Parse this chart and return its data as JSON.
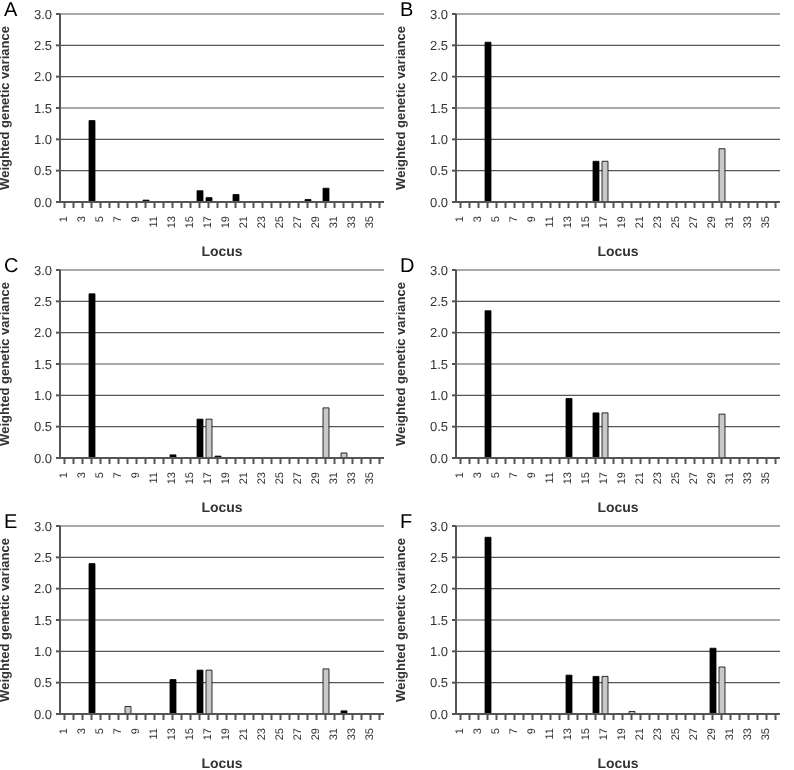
{
  "chart_data": [
    {
      "type": "bar",
      "title": "A",
      "xlabel": "Locus",
      "ylabel": "Weighted genetic variance",
      "ylim": [
        0,
        3
      ],
      "yticks": [
        {
          "value": 0,
          "label": "0.0"
        },
        0.5,
        {
          "value": 1,
          "label": "1.0"
        },
        1.5,
        {
          "value": 2,
          "label": "2.0"
        },
        2.5,
        {
          "value": 3,
          "label": "3.0"
        }
      ],
      "grid": "y",
      "categories": [
        "1",
        null,
        "3",
        null,
        "5",
        null,
        "7",
        null,
        "9",
        null,
        "11",
        null,
        "13",
        null,
        "15",
        null,
        "17",
        null,
        "19",
        null,
        "21",
        null,
        "23",
        null,
        "25",
        null,
        "27",
        null,
        "29",
        null,
        "31",
        null,
        "33",
        null,
        "35",
        null
      ],
      "values": [
        0,
        0,
        0,
        1.3,
        0,
        0,
        0,
        0,
        0,
        0.03,
        0,
        0,
        0,
        0,
        0,
        0.18,
        0.07,
        0,
        0,
        0.12,
        0,
        0,
        0,
        0,
        0,
        0,
        0,
        0.04,
        0,
        0.22,
        0,
        0,
        0,
        0,
        0,
        0
      ],
      "colors": [
        "#000000",
        "#000000",
        "#000000",
        "#000000",
        "#000000",
        "#000000",
        "#000000",
        "#000000",
        "#000000",
        "#000000",
        "#000000",
        "#000000",
        "#000000",
        "#000000",
        "#000000",
        "#000000",
        "#000000",
        "#000000",
        "#000000",
        "#000000",
        "#000000",
        "#000000",
        "#000000",
        "#000000",
        "#000000",
        "#000000",
        "#000000",
        "#000000",
        "#000000",
        "#000000",
        "#000000",
        "#000000",
        "#000000",
        "#000000",
        "#000000",
        "#000000"
      ]
    },
    {
      "type": "bar",
      "title": "B",
      "xlabel": "Locus",
      "ylabel": "Weighted genetic variance",
      "ylim": [
        0,
        3
      ],
      "yticks": [
        {
          "value": 0,
          "label": "0.0"
        },
        0.5,
        {
          "value": 1,
          "label": "1.0"
        },
        1.5,
        {
          "value": 2,
          "label": "2.0"
        },
        2.5,
        {
          "value": 3,
          "label": "3.0"
        }
      ],
      "grid": "y",
      "categories": [
        "1",
        null,
        "3",
        null,
        "5",
        null,
        "7",
        null,
        "9",
        null,
        "11",
        null,
        "13",
        null,
        "15",
        null,
        "17",
        null,
        "19",
        null,
        "21",
        null,
        "23",
        null,
        "25",
        null,
        "27",
        null,
        "29",
        null,
        "31",
        null,
        "33",
        null,
        "35",
        null
      ],
      "values": [
        0,
        0,
        0,
        2.55,
        0,
        0,
        0,
        0,
        0,
        0,
        0,
        0,
        0,
        0,
        0,
        0.65,
        0.65,
        0,
        0,
        0,
        0,
        0,
        0,
        0,
        0,
        0,
        0,
        0,
        0,
        0.85,
        0,
        0,
        0,
        0,
        0,
        0
      ],
      "colors": [
        "#000000",
        "#000000",
        "#000000",
        "#000000",
        "#000000",
        "#000000",
        "#000000",
        "#000000",
        "#000000",
        "#000000",
        "#000000",
        "#000000",
        "#000000",
        "#000000",
        "#000000",
        "#000000",
        "#c8c8c8",
        "#000000",
        "#000000",
        "#000000",
        "#000000",
        "#000000",
        "#000000",
        "#000000",
        "#000000",
        "#000000",
        "#000000",
        "#000000",
        "#000000",
        "#c8c8c8",
        "#000000",
        "#000000",
        "#000000",
        "#000000",
        "#000000",
        "#000000"
      ]
    },
    {
      "type": "bar",
      "title": "C",
      "xlabel": "Locus",
      "ylabel": "Weighted genetic variance",
      "ylim": [
        0,
        3
      ],
      "yticks": [
        {
          "value": 0,
          "label": "0.0"
        },
        0.5,
        {
          "value": 1,
          "label": "1.0"
        },
        1.5,
        {
          "value": 2,
          "label": "2.0"
        },
        2.5,
        {
          "value": 3,
          "label": "3.0"
        }
      ],
      "grid": "y",
      "categories": [
        "1",
        null,
        "3",
        null,
        "5",
        null,
        "7",
        null,
        "9",
        null,
        "11",
        null,
        "13",
        null,
        "15",
        null,
        "17",
        null,
        "19",
        null,
        "21",
        null,
        "23",
        null,
        "25",
        null,
        "27",
        null,
        "29",
        null,
        "31",
        null,
        "33",
        null,
        "35",
        null
      ],
      "values": [
        0,
        0,
        0,
        2.62,
        0,
        0,
        0,
        0,
        0,
        0,
        0,
        0,
        0.05,
        0,
        0,
        0.62,
        0.62,
        0.03,
        0,
        0,
        0,
        0,
        0,
        0,
        0,
        0,
        0,
        0,
        0,
        0.8,
        0,
        0.08,
        0,
        0,
        0,
        0
      ],
      "colors": [
        "#000000",
        "#000000",
        "#000000",
        "#000000",
        "#000000",
        "#000000",
        "#000000",
        "#000000",
        "#000000",
        "#000000",
        "#000000",
        "#000000",
        "#000000",
        "#000000",
        "#000000",
        "#000000",
        "#c8c8c8",
        "#000000",
        "#000000",
        "#000000",
        "#000000",
        "#000000",
        "#000000",
        "#000000",
        "#000000",
        "#000000",
        "#000000",
        "#000000",
        "#000000",
        "#c8c8c8",
        "#000000",
        "#c8c8c8",
        "#000000",
        "#000000",
        "#000000",
        "#000000"
      ]
    },
    {
      "type": "bar",
      "title": "D",
      "xlabel": "Locus",
      "ylabel": "Weighted genetic variance",
      "ylim": [
        0,
        3
      ],
      "yticks": [
        {
          "value": 0,
          "label": "0.0"
        },
        0.5,
        {
          "value": 1,
          "label": "1.0"
        },
        1.5,
        {
          "value": 2,
          "label": "2.0"
        },
        2.5,
        {
          "value": 3,
          "label": "3.0"
        }
      ],
      "grid": "y",
      "categories": [
        "1",
        null,
        "3",
        null,
        "5",
        null,
        "7",
        null,
        "9",
        null,
        "11",
        null,
        "13",
        null,
        "15",
        null,
        "17",
        null,
        "19",
        null,
        "21",
        null,
        "23",
        null,
        "25",
        null,
        "27",
        null,
        "29",
        null,
        "31",
        null,
        "33",
        null,
        "35",
        null
      ],
      "values": [
        0,
        0,
        0,
        2.35,
        0,
        0,
        0,
        0,
        0,
        0,
        0,
        0,
        0.95,
        0,
        0,
        0.72,
        0.72,
        0,
        0,
        0,
        0,
        0,
        0,
        0,
        0,
        0,
        0,
        0,
        0,
        0.7,
        0,
        0,
        0,
        0,
        0,
        0
      ],
      "colors": [
        "#000000",
        "#000000",
        "#000000",
        "#000000",
        "#000000",
        "#000000",
        "#000000",
        "#000000",
        "#000000",
        "#000000",
        "#000000",
        "#000000",
        "#000000",
        "#000000",
        "#000000",
        "#000000",
        "#c8c8c8",
        "#000000",
        "#000000",
        "#000000",
        "#000000",
        "#000000",
        "#000000",
        "#000000",
        "#000000",
        "#000000",
        "#000000",
        "#000000",
        "#000000",
        "#c8c8c8",
        "#000000",
        "#000000",
        "#000000",
        "#000000",
        "#000000",
        "#000000"
      ]
    },
    {
      "type": "bar",
      "title": "E",
      "xlabel": "Locus",
      "ylabel": "Weighted genetic variance",
      "ylim": [
        0,
        3
      ],
      "yticks": [
        {
          "value": 0,
          "label": "0.0"
        },
        0.5,
        {
          "value": 1,
          "label": "1.0"
        },
        1.5,
        {
          "value": 2,
          "label": "2.0"
        },
        2.5,
        {
          "value": 3,
          "label": "3.0"
        }
      ],
      "grid": "y",
      "categories": [
        "1",
        null,
        "3",
        null,
        "5",
        null,
        "7",
        null,
        "9",
        null,
        "11",
        null,
        "13",
        null,
        "15",
        null,
        "17",
        null,
        "19",
        null,
        "21",
        null,
        "23",
        null,
        "25",
        null,
        "27",
        null,
        "29",
        null,
        "31",
        null,
        "33",
        null,
        "35",
        null
      ],
      "values": [
        0,
        0,
        0,
        2.4,
        0,
        0,
        0,
        0.12,
        0,
        0,
        0,
        0,
        0.55,
        0,
        0,
        0.7,
        0.7,
        0,
        0,
        0,
        0,
        0,
        0,
        0,
        0,
        0,
        0,
        0,
        0,
        0.72,
        0,
        0.05,
        0,
        0,
        0,
        0
      ],
      "colors": [
        "#000000",
        "#000000",
        "#000000",
        "#000000",
        "#000000",
        "#000000",
        "#000000",
        "#c8c8c8",
        "#000000",
        "#000000",
        "#000000",
        "#000000",
        "#000000",
        "#000000",
        "#000000",
        "#000000",
        "#c8c8c8",
        "#000000",
        "#000000",
        "#000000",
        "#000000",
        "#000000",
        "#000000",
        "#000000",
        "#000000",
        "#000000",
        "#000000",
        "#000000",
        "#000000",
        "#c8c8c8",
        "#000000",
        "#000000",
        "#000000",
        "#000000",
        "#000000",
        "#000000"
      ]
    },
    {
      "type": "bar",
      "title": "F",
      "xlabel": "Locus",
      "ylabel": "Weighted genetic variance",
      "ylim": [
        0,
        3
      ],
      "yticks": [
        {
          "value": 0,
          "label": "0.0"
        },
        0.5,
        {
          "value": 1,
          "label": "1.0"
        },
        1.5,
        {
          "value": 2,
          "label": "2.0"
        },
        2.5,
        {
          "value": 3,
          "label": "3.0"
        }
      ],
      "grid": "y",
      "categories": [
        "1",
        null,
        "3",
        null,
        "5",
        null,
        "7",
        null,
        "9",
        null,
        "11",
        null,
        "13",
        null,
        "15",
        null,
        "17",
        null,
        "19",
        null,
        "21",
        null,
        "23",
        null,
        "25",
        null,
        "27",
        null,
        "29",
        null,
        "31",
        null,
        "33",
        null,
        "35",
        null
      ],
      "values": [
        0,
        0,
        0,
        2.82,
        0,
        0,
        0,
        0,
        0,
        0,
        0,
        0,
        0.62,
        0,
        0,
        0.6,
        0.6,
        0,
        0,
        0.04,
        0,
        0,
        0,
        0,
        0,
        0,
        0,
        0,
        1.05,
        0.75,
        0,
        0,
        0,
        0,
        0,
        0
      ],
      "colors": [
        "#000000",
        "#000000",
        "#000000",
        "#000000",
        "#000000",
        "#000000",
        "#000000",
        "#000000",
        "#000000",
        "#000000",
        "#000000",
        "#000000",
        "#000000",
        "#000000",
        "#000000",
        "#000000",
        "#c8c8c8",
        "#000000",
        "#000000",
        "#c8c8c8",
        "#000000",
        "#000000",
        "#000000",
        "#000000",
        "#000000",
        "#000000",
        "#000000",
        "#000000",
        "#000000",
        "#c8c8c8",
        "#000000",
        "#000000",
        "#000000",
        "#000000",
        "#000000",
        "#000000"
      ]
    }
  ]
}
